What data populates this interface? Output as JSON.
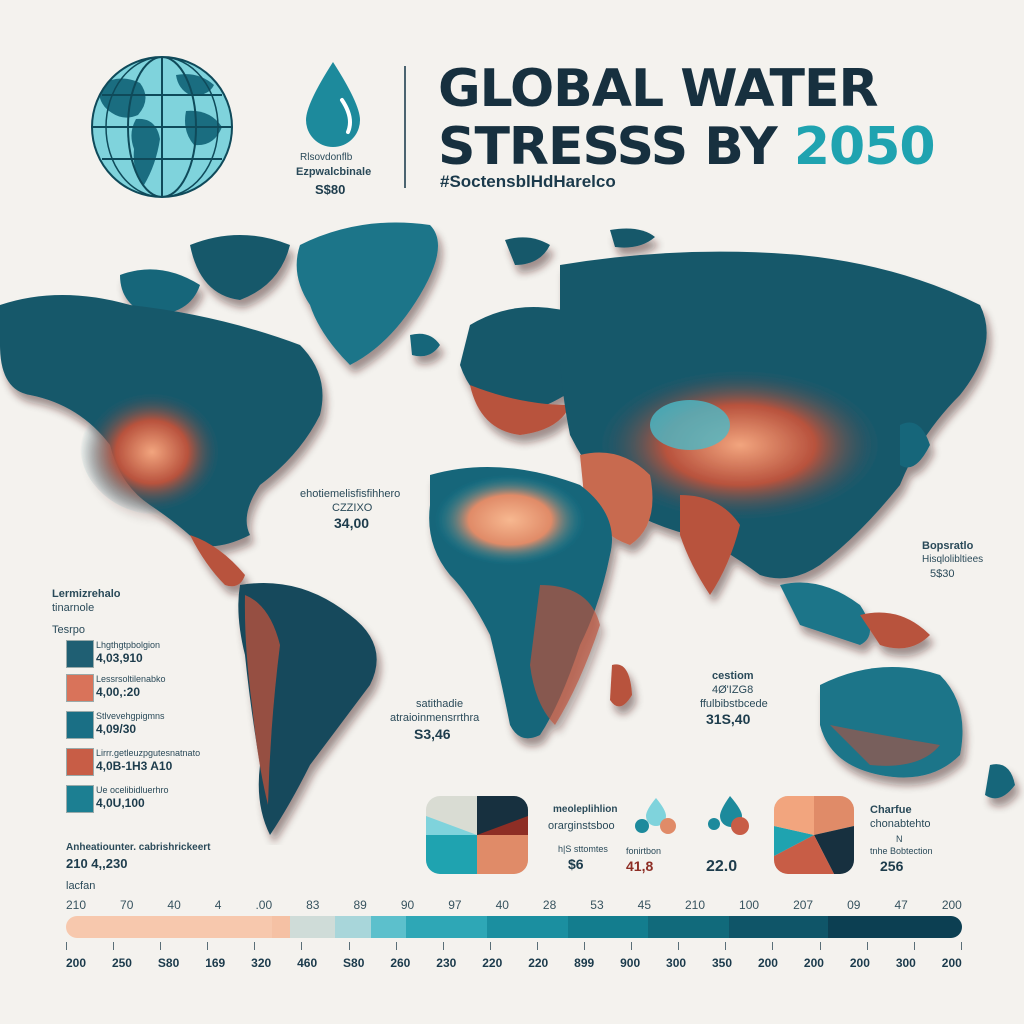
{
  "header": {
    "title_line1": "GLOBAL WATER",
    "title_line2": "STRESSS BY",
    "title_year": "2050",
    "hashtag": "#SoctensblHdHarelco",
    "drop_caption1": "Rlsovdonflb",
    "drop_caption2": "Ezpwalcbinale",
    "drop_caption3": "S$80",
    "icons": [
      "globe-icon",
      "water-drop-icon"
    ]
  },
  "map_labels": {
    "atlantic_label": "ehotiemelisfisfihhero",
    "atlantic_sub": "CZZIXO",
    "atlantic_value": "34,00",
    "right_label": "Bopsratlo",
    "right_sub": "Hisqlolibltiees",
    "right_value": "5$30",
    "south_label": "satithadie",
    "south_sub": "atraioinmensrrthra",
    "south_value": "S3,46",
    "indian_label": "cestiom",
    "indian_sub": "4Ø'IZG8",
    "indian_sub2": "ffulbibstbcede",
    "indian_value": "31S,40"
  },
  "legend": {
    "title1": "Lermizrehalo",
    "title2": "tinarnole",
    "subtitle": "Tesrpo",
    "items": [
      {
        "label": "Lhgthgtpbolgion",
        "value": "4,03,910",
        "color": "#1f5f73"
      },
      {
        "label": "Lessrsoltilenabko",
        "value": "4,00,:20",
        "color": "#d9735a"
      },
      {
        "label": "Stlvevehgpigmns",
        "value": "4,09/30",
        "color": "#1a6f85"
      },
      {
        "label": "Lirrr.getleuzpgutesnatnato",
        "value": "4,0B-1H3 A10",
        "color": "#c85d46"
      },
      {
        "label": "Ue ocelibidluerhro",
        "value": "4,0U,100",
        "color": "#1c7f92"
      }
    ],
    "footer_label": "Anheatiounter. cabrishrickeert",
    "footer_value": "210 4,,230",
    "footer_word": "lacfan"
  },
  "bottom_cards": {
    "card1_label": "meoleplihlion",
    "card1_sub": "orarginstsboo",
    "card1_sub2": "h|S sttomtes",
    "card1_value": "$6",
    "card2_label": "fonirtbon",
    "card2_value": "41,8",
    "card3_value": "22.0",
    "card4_label": "Charfue",
    "card4_sub": "chonabtehto",
    "card4_sub2": "N",
    "card4_sub3": "tnhe Bobtection",
    "card4_value": "256"
  },
  "scale": {
    "top": [
      "210",
      "70",
      "40",
      "4",
      ".00",
      "83",
      "89",
      "90",
      "97",
      "40",
      "28",
      "53",
      "45",
      "210",
      "100",
      "207",
      "09",
      "47",
      "200"
    ],
    "bottom": [
      "200",
      "250",
      "S80",
      "169",
      "320",
      "460",
      "S80",
      "260",
      "230",
      "220",
      "220",
      "899",
      "900",
      "300",
      "350",
      "200",
      "200",
      "200",
      "300",
      "200"
    ],
    "colors": [
      "#f7c8ad",
      "#f5c1a4",
      "#cfdcd8",
      "#a8d6da",
      "#5cc0cc",
      "#2ea7b6",
      "#1b8fa0",
      "#137d8e",
      "#116a7b",
      "#0f5568",
      "#0c3f52"
    ]
  },
  "colors": {
    "ocean_bg": "#f4f2ee",
    "land_dark": "#15586b",
    "land_teal": "#1c8aa0",
    "stress_red": "#b8523d",
    "stress_peach": "#f2a57e",
    "accent": "#1fa3b0"
  }
}
